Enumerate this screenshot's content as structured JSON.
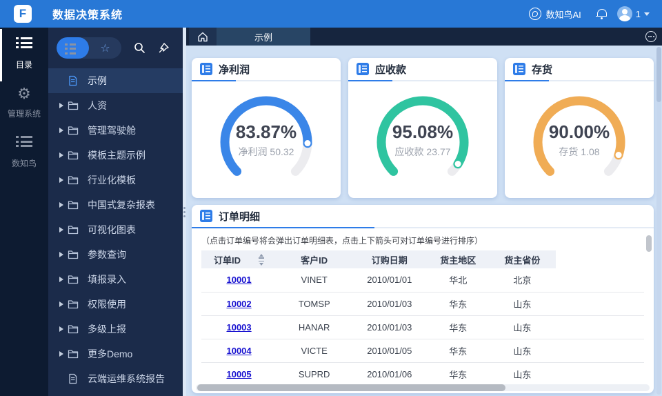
{
  "topbar": {
    "title": "数据决策系统",
    "logo_letter": "F",
    "ai_label": "数知鸟AI",
    "user_count": "1"
  },
  "rail": {
    "items": [
      {
        "label": "目录",
        "icon": "list-icon",
        "active": true
      },
      {
        "label": "管理系统",
        "icon": "gear-icon",
        "active": false
      },
      {
        "label": "数知鸟",
        "icon": "list-icon",
        "active": false
      }
    ]
  },
  "menu": {
    "items": [
      {
        "label": "示例",
        "type": "file",
        "active": true,
        "arrow": false
      },
      {
        "label": "人资",
        "type": "folder",
        "active": false,
        "arrow": true
      },
      {
        "label": "管理驾驶舱",
        "type": "folder",
        "active": false,
        "arrow": true
      },
      {
        "label": "模板主题示例",
        "type": "folder",
        "active": false,
        "arrow": true
      },
      {
        "label": "行业化模板",
        "type": "folder",
        "active": false,
        "arrow": true
      },
      {
        "label": "中国式复杂报表",
        "type": "folder",
        "active": false,
        "arrow": true
      },
      {
        "label": "可视化图表",
        "type": "folder",
        "active": false,
        "arrow": true
      },
      {
        "label": "参数查询",
        "type": "folder",
        "active": false,
        "arrow": true
      },
      {
        "label": "填报录入",
        "type": "folder",
        "active": false,
        "arrow": true
      },
      {
        "label": "权限使用",
        "type": "folder",
        "active": false,
        "arrow": true
      },
      {
        "label": "多级上报",
        "type": "folder",
        "active": false,
        "arrow": true
      },
      {
        "label": "更多Demo",
        "type": "folder",
        "active": false,
        "arrow": true
      },
      {
        "label": "云端运维系统报告",
        "type": "file",
        "active": false,
        "arrow": false
      }
    ]
  },
  "tabs": {
    "active_label": "示例"
  },
  "colors": {
    "accent": "#2e7ce8",
    "gauge_blue": "#3a86e8",
    "gauge_green": "#2fc4a0",
    "gauge_orange": "#f0ac55",
    "gauge_track": "#ececef"
  },
  "gauges": [
    {
      "title": "净利润",
      "percent": 83.87,
      "value_display": "83.87%",
      "sub_label": "净利润 50.32",
      "color": "#3a86e8"
    },
    {
      "title": "应收款",
      "percent": 95.08,
      "value_display": "95.08%",
      "sub_label": "应收款 23.77",
      "color": "#2fc4a0"
    },
    {
      "title": "存货",
      "percent": 90.0,
      "value_display": "90.00%",
      "sub_label": "存货 1.08",
      "color": "#f0ac55"
    }
  ],
  "orders": {
    "title": "订单明细",
    "note": "（点击订单编号将会弹出订单明细表，点击上下箭头可对订单编号进行排序）",
    "columns": [
      "订单ID",
      "客户ID",
      "订购日期",
      "货主地区",
      "货主省份"
    ],
    "rows": [
      [
        "10001",
        "VINET",
        "2010/01/01",
        "华北",
        "北京"
      ],
      [
        "10002",
        "TOMSP",
        "2010/01/03",
        "华东",
        "山东"
      ],
      [
        "10003",
        "HANAR",
        "2010/01/03",
        "华东",
        "山东"
      ],
      [
        "10004",
        "VICTE",
        "2010/01/05",
        "华东",
        "山东"
      ],
      [
        "10005",
        "SUPRD",
        "2010/01/06",
        "华东",
        "山东"
      ]
    ]
  }
}
